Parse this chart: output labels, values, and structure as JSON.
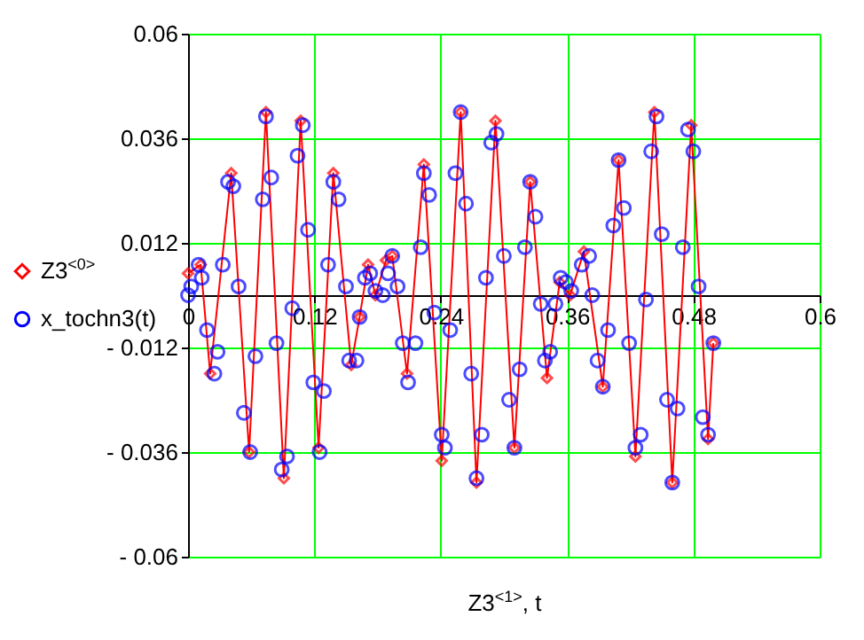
{
  "chart_data": {
    "type": "line",
    "xlabel": "Z3$^{<1>}$, t",
    "xlim": [
      0,
      0.6
    ],
    "xticks": [
      0,
      0.12,
      0.24,
      0.36,
      0.48,
      0.6
    ],
    "ylim": [
      -0.06,
      0.06
    ],
    "yticks": [
      0.06,
      0.036,
      0.012,
      {
        "value": -0.012,
        "label": "- 0.012"
      },
      {
        "value": -0.036,
        "label": "- 0.036"
      },
      {
        "value": -0.06,
        "label": "- 0.06"
      }
    ],
    "grid": true,
    "legend": "left",
    "series": [
      {
        "name": "Z3$^{<0>}$",
        "color": "#ff0000",
        "marker": "diamond",
        "x": [
          0,
          0.012,
          0.021,
          0.041,
          0.058,
          0.074,
          0.091,
          0.107,
          0.124,
          0.138,
          0.155,
          0.163,
          0.171,
          0.178,
          0.188,
          0.194,
          0.208,
          0.224,
          0.241,
          0.259,
          0.274,
          0.292,
          0.31,
          0.325,
          0.341,
          0.353,
          0.363,
          0.376,
          0.394,
          0.409,
          0.425,
          0.443,
          0.46,
          0.478,
          0.494,
          0.499
        ],
        "values": [
          0.005,
          0.007,
          -0.018,
          0.028,
          -0.036,
          0.042,
          -0.042,
          0.04,
          -0.035,
          0.028,
          -0.016,
          -0.005,
          0.007,
          0,
          0.008,
          0.009,
          -0.018,
          0.03,
          -0.038,
          0.042,
          -0.043,
          0.04,
          -0.035,
          0.026,
          -0.019,
          0.003,
          0,
          0.01,
          -0.021,
          0.031,
          -0.037,
          0.042,
          -0.043,
          0.039,
          -0.033,
          -0.011
        ]
      },
      {
        "name": "x_tochn3(t)",
        "color": "#0000ff",
        "type": "scatter",
        "marker": "circle",
        "x": [
          0,
          0.003,
          0.01,
          0.013,
          0.018,
          0.025,
          0.028,
          0.033,
          0.038,
          0.043,
          0.048,
          0.053,
          0.059,
          0.064,
          0.071,
          0.074,
          0.079,
          0.084,
          0.089,
          0.094,
          0.099,
          0.104,
          0.109,
          0.114,
          0.119,
          0.125,
          0.129,
          0.133,
          0.138,
          0.143,
          0.15,
          0.153,
          0.16,
          0.163,
          0.168,
          0.173,
          0.178,
          0.185,
          0.19,
          0.194,
          0.199,
          0.204,
          0.209,
          0.216,
          0.221,
          0.224,
          0.229,
          0.234,
          0.241,
          0.244,
          0.249,
          0.254,
          0.259,
          0.264,
          0.269,
          0.274,
          0.279,
          0.283,
          0.288,
          0.293,
          0.3,
          0.305,
          0.31,
          0.315,
          0.32,
          0.325,
          0.33,
          0.335,
          0.339,
          0.344,
          0.349,
          0.354,
          0.359,
          0.364,
          0.374,
          0.381,
          0.384,
          0.389,
          0.394,
          0.399,
          0.404,
          0.409,
          0.414,
          0.419,
          0.425,
          0.43,
          0.435,
          0.44,
          0.445,
          0.45,
          0.455,
          0.46,
          0.465,
          0.47,
          0.475,
          0.48,
          0.485,
          0.489,
          0.494,
          0.499
        ],
        "values": [
          0,
          0.002,
          0.007,
          0.004,
          -0.008,
          -0.018,
          -0.013,
          0.007,
          0.026,
          0.025,
          0.002,
          -0.027,
          -0.036,
          -0.014,
          0.022,
          0.041,
          0.027,
          -0.011,
          -0.04,
          -0.037,
          -0.003,
          0.032,
          0.039,
          0.015,
          -0.02,
          -0.036,
          -0.022,
          0.007,
          0.026,
          0.022,
          0.002,
          -0.015,
          -0.015,
          -0.005,
          0.004,
          0.005,
          0.001,
          0,
          0.005,
          0.009,
          0.002,
          -0.011,
          -0.02,
          -0.011,
          0.011,
          0.028,
          0.023,
          -0.004,
          -0.032,
          -0.035,
          -0.008,
          0.028,
          0.042,
          0.021,
          -0.018,
          -0.042,
          -0.032,
          0.004,
          0.035,
          0.037,
          0.009,
          -0.024,
          -0.035,
          -0.017,
          0.011,
          0.026,
          0.018,
          -0.002,
          -0.015,
          -0.013,
          -0.002,
          0.004,
          0.003,
          0.001,
          0.007,
          0.009,
          0,
          -0.015,
          -0.021,
          -0.008,
          0.016,
          0.031,
          0.02,
          -0.011,
          -0.035,
          -0.032,
          -0.001,
          0.033,
          0.041,
          0.014,
          -0.024,
          -0.043,
          -0.026,
          0.011,
          0.038,
          0.033,
          0.002,
          -0.028,
          -0.032,
          -0.011
        ]
      }
    ]
  }
}
